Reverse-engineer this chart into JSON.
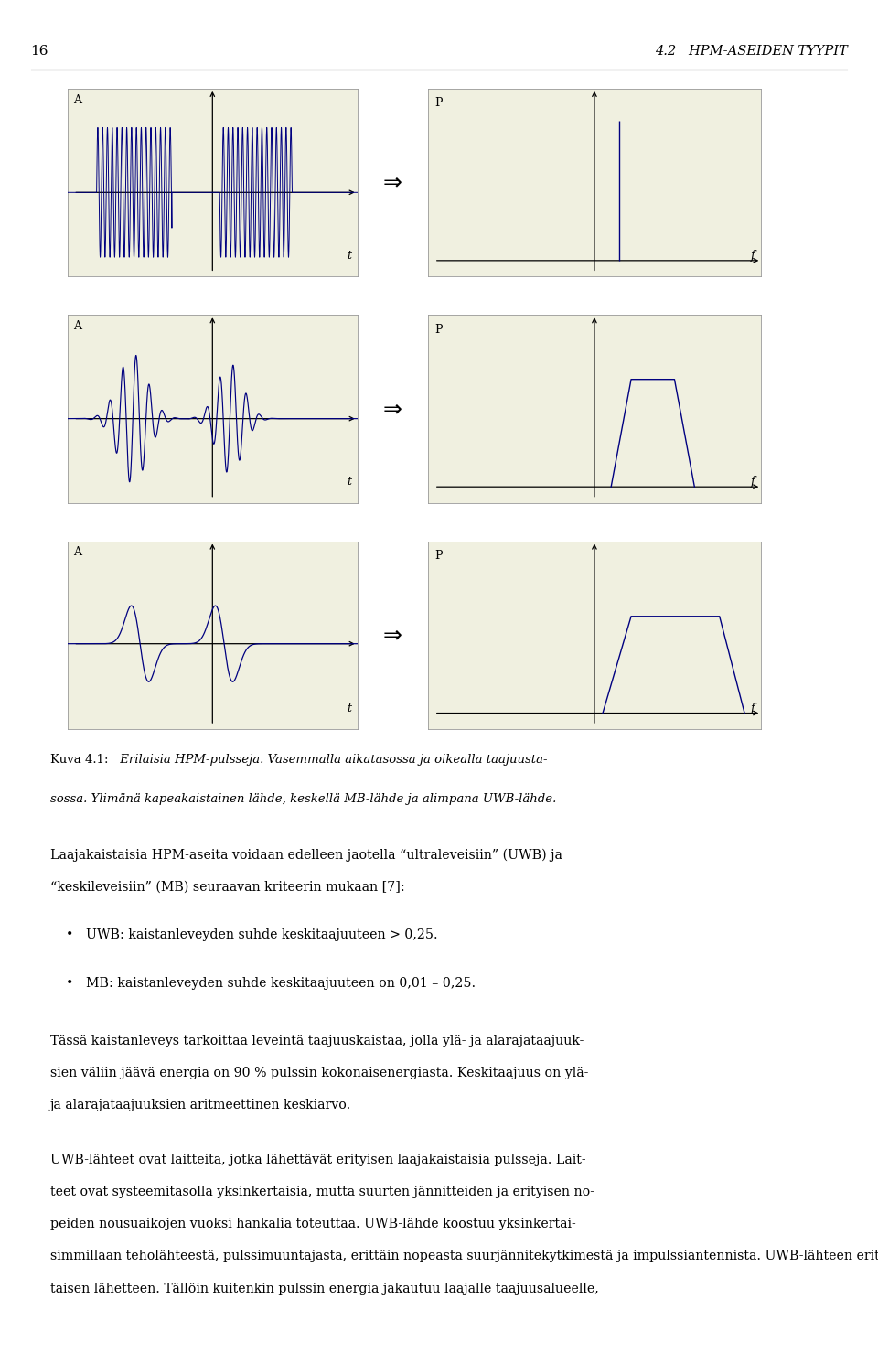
{
  "page_num": "16",
  "header_right": "4.2   HPM-ASEIDEN TYYPIT",
  "bg_color": "#ffffff",
  "panel_bg": "#f0f0e0",
  "panel_border": "#999999",
  "signal_color": "#000080",
  "axis_color": "#000000",
  "grid_color": "#ccccbb",
  "bullet1": "UWB: kaistanleveyden suhde keskitaajuuteen > 0,25.",
  "bullet2": "MB: kaistanleveyden suhde keskitaajuuteen on 0,01 – 0,25.",
  "para1_lines": [
    "Laajakaistaisia HPM-aseita voidaan edelleen jaotella “ultraleveisiin” (UWB) ja",
    "“keskileveisiin” (MB) seuraavan kriteerin mukaan [7]:"
  ],
  "para2_lines": [
    "Tässä kaistanleveys tarkoittaa leveintä taajuuskaistaa, jolla ylä- ja alarajataajuuk-",
    "sien väliin jäävä energia on 90 % pulssin kokonaisenergiasta. Keskitaajuus on ylä-",
    "ja alarajataajuuksien aritmeettinen keskiarvo."
  ],
  "para3_lines": [
    "UWB-lähteet ovat laitteita, jotka lähettävät erityisen laajakaistaisia pulsseja. Lait-",
    "teet ovat systeemitasolla yksinkertaisia, mutta suurten jännitteiden ja erityisen no-",
    "peiden nousuaikojen vuoksi hankalia toteuttaa. UWB-lähde koostuu yksinkertai-",
    "simmillaan teholähteestä, pulssimuuntajasta, erittäin nopeasta suurjännitekytkimestä ja impulssiantennista. UWB-lähteen erittäin kapea pulssi tuottaa laajakais-",
    "taisen lähetteen. Tällöin kuitenkin pulssin energia jakautuu laajalle taajuusalueelle,"
  ],
  "cap_bold": "Kuva 4.1:",
  "cap_italic1": " Erilaisia HPM-pulsseja. Vasemmalla aikatasossa ja oikealla taajuusta-",
  "cap_italic2": "sossa. Ylimänä kapeakaistainen lähde, keskellä MB-lähde ja alimpana UWB-lähde."
}
